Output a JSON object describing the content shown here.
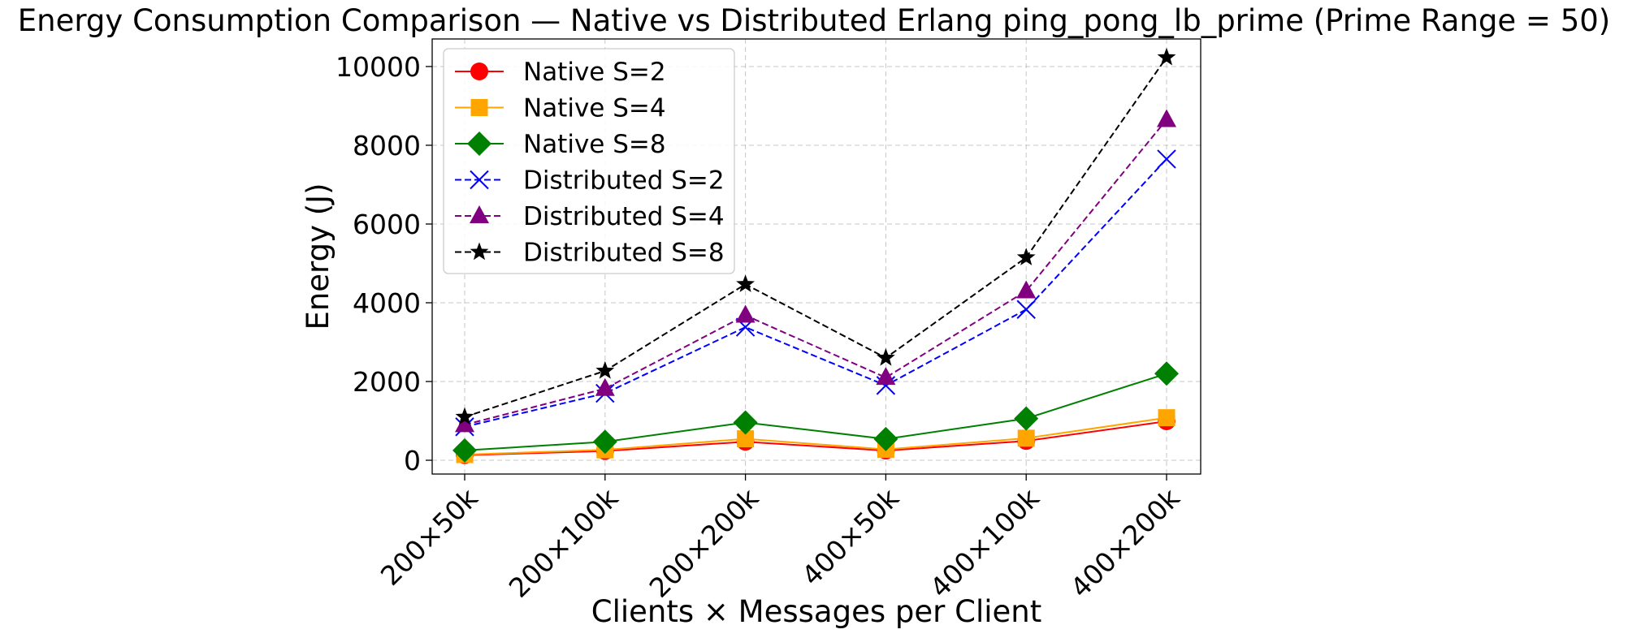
{
  "chart_data": {
    "type": "line",
    "title": "Energy Consumption Comparison — Native vs Distributed Erlang ping_pong_lb_prime (Prime Range = 50)",
    "xlabel": "Clients × Messages per Client",
    "ylabel": "Energy (J)",
    "categories": [
      "200×50k",
      "200×100k",
      "200×200k",
      "400×50k",
      "400×100k",
      "400×200k"
    ],
    "ylim": [
      -350,
      10700
    ],
    "yticks": [
      0,
      2000,
      4000,
      6000,
      8000,
      10000
    ],
    "grid": true,
    "legend_position": "upper-left",
    "series": [
      {
        "name": "Native S=2",
        "values": [
          130,
          235,
          470,
          245,
          490,
          990
        ],
        "color": "#ff0000",
        "marker": "circle",
        "linestyle": "solid"
      },
      {
        "name": "Native S=4",
        "values": [
          145,
          265,
          545,
          275,
          560,
          1080
        ],
        "color": "#ffa500",
        "marker": "square",
        "linestyle": "solid"
      },
      {
        "name": "Native S=8",
        "values": [
          250,
          470,
          960,
          540,
          1060,
          2200
        ],
        "color": "#008000",
        "marker": "diamond",
        "linestyle": "solid"
      },
      {
        "name": "Distributed S=2",
        "values": [
          850,
          1700,
          3380,
          1900,
          3830,
          7650
        ],
        "color": "#0000ff",
        "marker": "x",
        "linestyle": "dashed"
      },
      {
        "name": "Distributed S=4",
        "values": [
          900,
          1820,
          3680,
          2100,
          4300,
          8650
        ],
        "color": "#800080",
        "marker": "triangle",
        "linestyle": "dashed"
      },
      {
        "name": "Distributed S=8",
        "values": [
          1100,
          2270,
          4470,
          2600,
          5150,
          10230
        ],
        "color": "#000000",
        "marker": "star",
        "linestyle": "dashed"
      }
    ]
  }
}
